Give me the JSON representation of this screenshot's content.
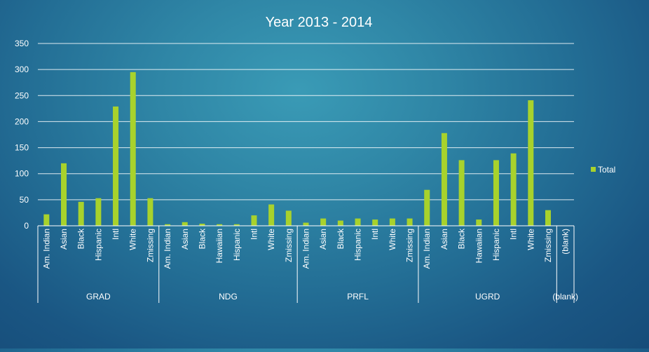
{
  "chart_data": {
    "type": "bar",
    "title": "Year 2013 -  2014",
    "xlabel": "",
    "ylabel": "",
    "ylim": [
      0,
      350
    ],
    "yticks": [
      0,
      50,
      100,
      150,
      200,
      250,
      300,
      350
    ],
    "grid": true,
    "legend_position": "right",
    "bar_color": "#a8d22c",
    "series": [
      {
        "name": "Total"
      }
    ],
    "groups": [
      {
        "name": "GRAD",
        "categories": [
          {
            "label": "Am. Indian",
            "value": 22
          },
          {
            "label": "Asian",
            "value": 120
          },
          {
            "label": "Black",
            "value": 46
          },
          {
            "label": "Hispanic",
            "value": 53
          },
          {
            "label": "Intl",
            "value": 229
          },
          {
            "label": "White",
            "value": 295
          },
          {
            "label": "Zmissing",
            "value": 53
          }
        ]
      },
      {
        "name": "NDG",
        "categories": [
          {
            "label": "Am. Indian",
            "value": 3
          },
          {
            "label": "Asian",
            "value": 7
          },
          {
            "label": "Black",
            "value": 4
          },
          {
            "label": "Hawaiian",
            "value": 3
          },
          {
            "label": "Hispanic",
            "value": 3
          },
          {
            "label": "Intl",
            "value": 20
          },
          {
            "label": "White",
            "value": 41
          },
          {
            "label": "Zmissing",
            "value": 29
          }
        ]
      },
      {
        "name": "PRFL",
        "categories": [
          {
            "label": "Am. Indian",
            "value": 6
          },
          {
            "label": "Asian",
            "value": 14
          },
          {
            "label": "Black",
            "value": 10
          },
          {
            "label": "Hispanic",
            "value": 14
          },
          {
            "label": "Intl",
            "value": 12
          },
          {
            "label": "White",
            "value": 14
          },
          {
            "label": "Zmissing",
            "value": 14
          }
        ]
      },
      {
        "name": "UGRD",
        "categories": [
          {
            "label": "Am. Indian",
            "value": 69
          },
          {
            "label": "Asian",
            "value": 178
          },
          {
            "label": "Black",
            "value": 126
          },
          {
            "label": "Hawaiian",
            "value": 12
          },
          {
            "label": "Hispanic",
            "value": 126
          },
          {
            "label": "Intl",
            "value": 139
          },
          {
            "label": "White",
            "value": 241
          },
          {
            "label": "Zmissing",
            "value": 30
          }
        ]
      },
      {
        "name": "(blank)",
        "categories": [
          {
            "label": "(blank)",
            "value": 0
          }
        ]
      }
    ]
  }
}
